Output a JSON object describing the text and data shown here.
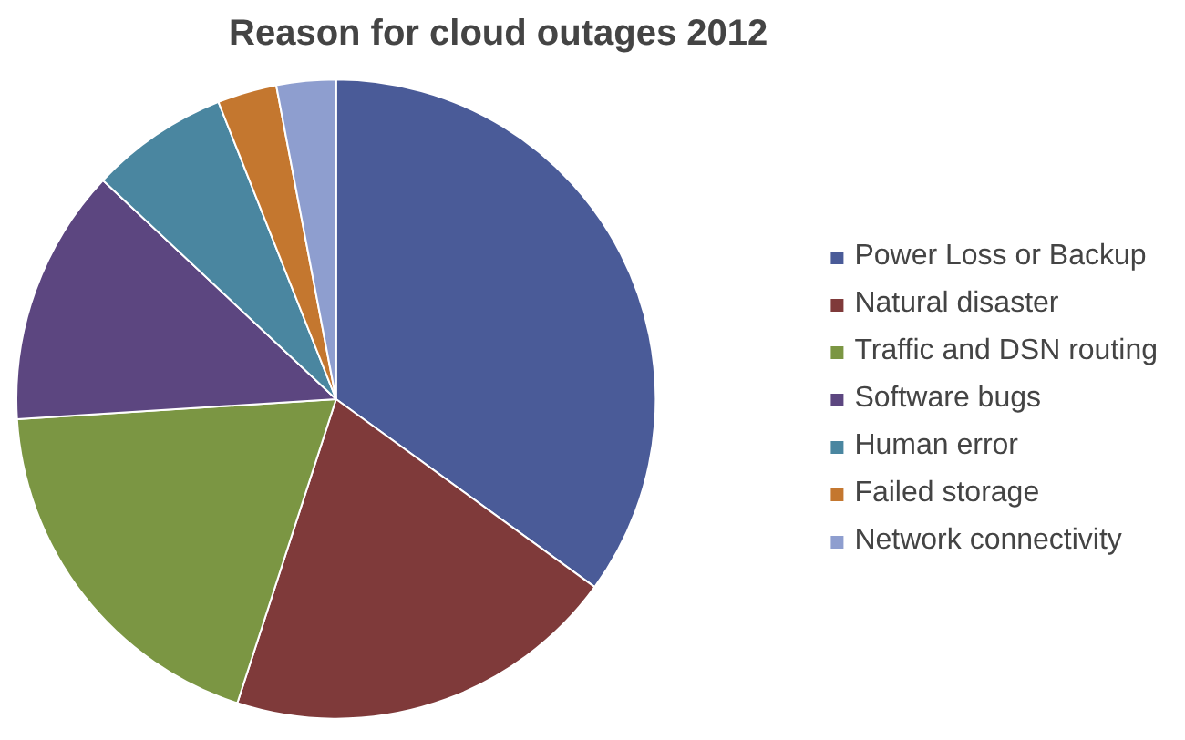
{
  "chart_data": {
    "type": "pie",
    "title": "Reason for cloud outages 2012",
    "categories": [
      "Power Loss or Backup",
      "Natural disaster",
      "Traffic and DSN routing",
      "Software bugs",
      "Human error",
      "Failed storage",
      "Network connectivity"
    ],
    "values": [
      35,
      20,
      19,
      13,
      7,
      3,
      3
    ],
    "colors": [
      "#4a5b98",
      "#7f3a3a",
      "#7b9643",
      "#5c4680",
      "#4a86a0",
      "#c4772f",
      "#8e9ecf"
    ],
    "legend": "right"
  }
}
